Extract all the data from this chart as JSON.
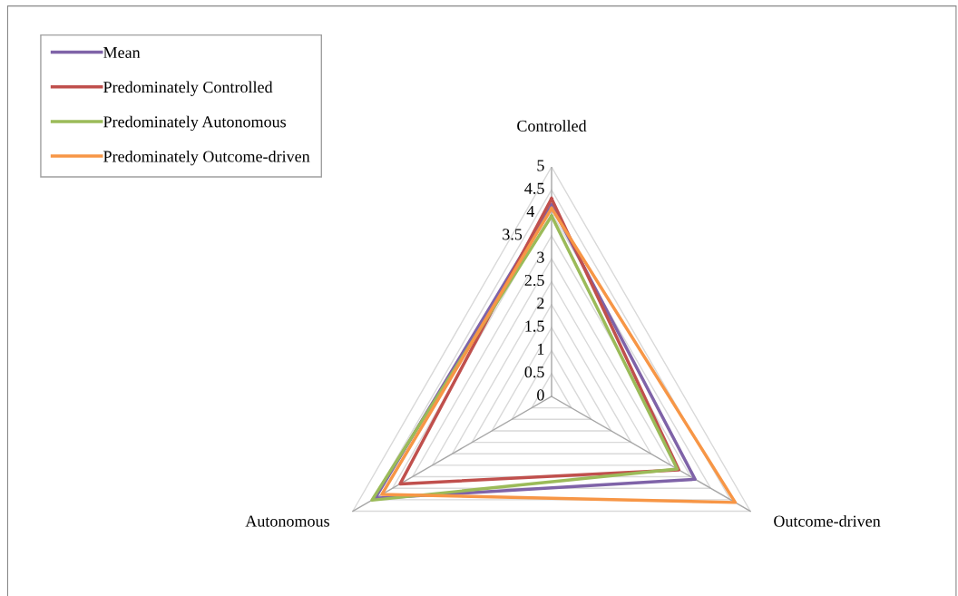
{
  "chart_data": {
    "type": "radar",
    "categories": [
      "Controlled",
      "Outcome-driven",
      "Autonomous"
    ],
    "series": [
      {
        "name": "Mean",
        "color": "#7f63a8",
        "values": [
          4.17,
          3.61,
          4.44
        ]
      },
      {
        "name": "Predominately Controlled",
        "color": "#c0504d",
        "values": [
          4.31,
          3.2,
          3.81
        ]
      },
      {
        "name": "Predominately Autonomous",
        "color": "#9bbb59",
        "values": [
          3.93,
          3.16,
          4.52
        ]
      },
      {
        "name": "Predominately Outcome-driven",
        "color": "#f79646",
        "values": [
          4.1,
          4.62,
          4.27
        ]
      }
    ],
    "ylim": [
      0,
      5
    ],
    "yticks": [
      0,
      0.5,
      1,
      1.5,
      2,
      2.5,
      3,
      3.5,
      4,
      4.5,
      5
    ],
    "grid": true,
    "legend": "top left"
  }
}
